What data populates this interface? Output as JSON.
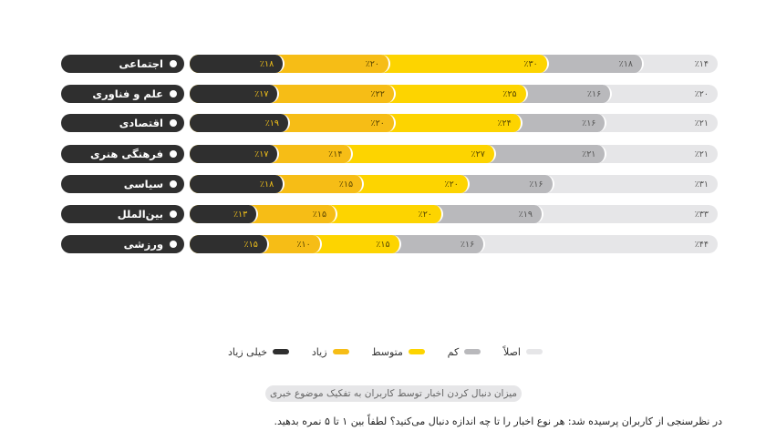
{
  "chart_data": {
    "type": "bar",
    "orientation": "horizontal-stacked-100",
    "title": "میزان دنبال کردن اخبار توسط کاربران به تفکیک موضوع خبری",
    "categories": [
      "اجتماعی",
      "علم و فناوری",
      "اقتصادی",
      "فرهنگی هنری",
      "سیاسی",
      "بین‌الملل",
      "ورزشی"
    ],
    "series": [
      {
        "name": "اصلاً",
        "color": "#e6e6e8",
        "values": [
          14,
          20,
          21,
          21,
          31,
          33,
          44
        ]
      },
      {
        "name": "کم",
        "color": "#b9b9bc",
        "values": [
          18,
          16,
          16,
          21,
          16,
          19,
          16
        ]
      },
      {
        "name": "متوسط",
        "color": "#fdd400",
        "values": [
          30,
          25,
          24,
          27,
          20,
          20,
          15
        ]
      },
      {
        "name": "زیاد",
        "color": "#f6bd16",
        "values": [
          20,
          22,
          20,
          14,
          15,
          15,
          10
        ]
      },
      {
        "name": "خیلی زیاد",
        "color": "#2f2f2f",
        "values": [
          18,
          17,
          19,
          17,
          18,
          13,
          15
        ]
      }
    ],
    "labels_display": [
      [
        "٪۱۴",
        "٪۱۸",
        "٪۳۰",
        "٪۲۰",
        "٪۱۸"
      ],
      [
        "٪۲۰",
        "٪۱۶",
        "٪۲۵",
        "٪۲۲",
        "٪۱۷"
      ],
      [
        "٪۲۱",
        "٪۱۶",
        "٪۲۴",
        "٪۲۰",
        "٪۱۹"
      ],
      [
        "٪۲۱",
        "٪۲۱",
        "٪۲۷",
        "٪۱۴",
        "٪۱۷"
      ],
      [
        "٪۳۱",
        "٪۱۶",
        "٪۲۰",
        "٪۱۵",
        "٪۱۸"
      ],
      [
        "٪۳۳",
        "٪۱۹",
        "٪۲۰",
        "٪۱۵",
        "٪۱۳"
      ],
      [
        "٪۴۴",
        "٪۱۶",
        "٪۱۵",
        "٪۱۰",
        "٪۱۵"
      ]
    ],
    "xlabel": "",
    "ylabel": "",
    "xlim": [
      0,
      100
    ],
    "grid": false,
    "legend_position": "bottom",
    "direction": "rtl"
  },
  "legend": [
    {
      "label": "اصلاً",
      "color": "#e6e6e8"
    },
    {
      "label": "کم",
      "color": "#b9b9bc"
    },
    {
      "label": "متوسط",
      "color": "#fdd400"
    },
    {
      "label": "زیاد",
      "color": "#f6bd16"
    },
    {
      "label": "خیلی زیاد",
      "color": "#2f2f2f"
    }
  ],
  "caption": "میزان دنبال کردن اخبار توسط کاربران به تفکیک موضوع خبری",
  "footnote": "در نظرسنجی از کاربران پرسیده شد: هر نوع اخبار را تا چه اندازه دنبال می‌کنید؟ لطفاً بین ۱ تا ۵ نمره بدهید."
}
